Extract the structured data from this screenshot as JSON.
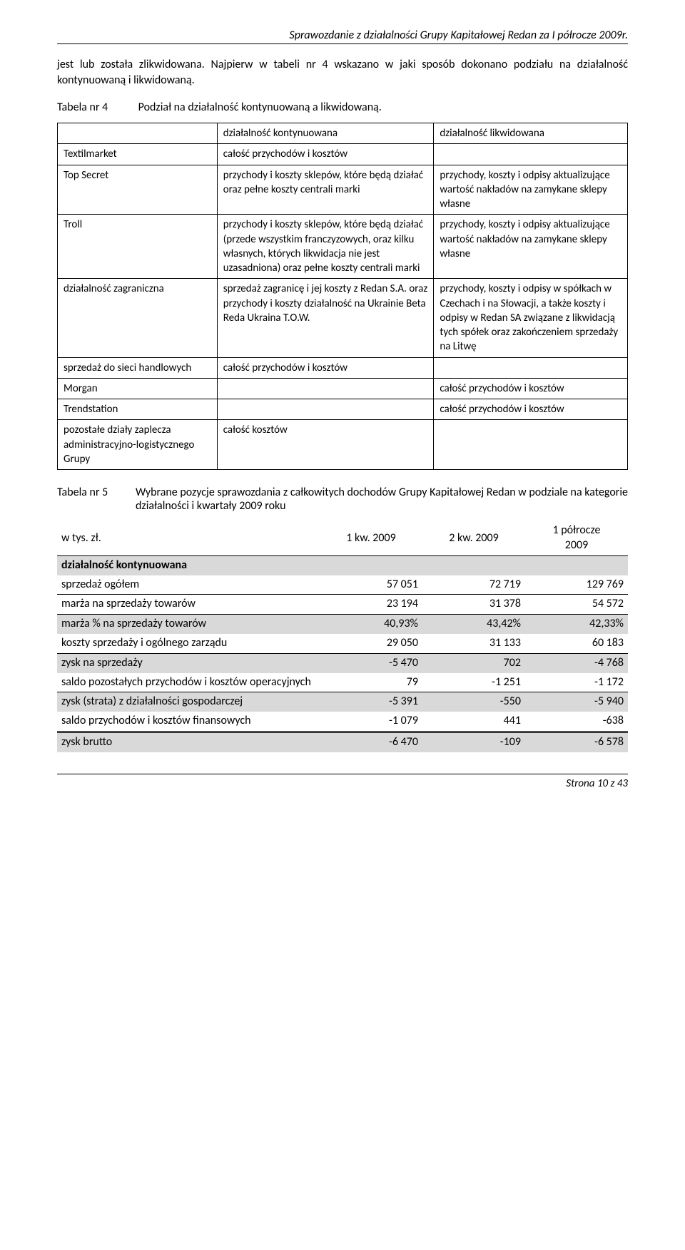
{
  "header": {
    "title": "Sprawozdanie z działalności Grupy Kapitałowej Redan za I półrocze 2009r."
  },
  "para1": "jest lub została zlikwidowana. Najpierw w tabeli nr 4 wskazano w jaki sposób dokonano podziału na działalność kontynuowaną i likwidowaną.",
  "tabela4": {
    "label": "Tabela nr 4",
    "caption": "Podział na działalność kontynuowaną a likwidowaną.",
    "head": {
      "c2": "działalność kontynuowana",
      "c3": "działalność likwidowana"
    },
    "rows": [
      {
        "c1": "Textilmarket",
        "c2": "całość przychodów i kosztów",
        "c3": ""
      },
      {
        "c1": "Top Secret",
        "c2": "przychody i koszty sklepów, które będą działać oraz pełne koszty centrali marki",
        "c3": "przychody, koszty i odpisy aktualizujące wartość nakładów na zamykane sklepy własne"
      },
      {
        "c1": "Troll",
        "c2": "przychody i koszty sklepów, które będą działać (przede wszystkim franczyzowych, oraz kilku własnych, których likwidacja nie jest uzasadniona) oraz pełne koszty centrali marki",
        "c3": "przychody, koszty i odpisy aktualizujące wartość nakładów na zamykane sklepy własne"
      },
      {
        "c1": "działalność zagraniczna",
        "c2": "sprzedaż zagranicę i jej koszty z Redan S.A. oraz przychody i koszty działalność na Ukrainie Beta Reda Ukraina T.O.W.",
        "c3": "przychody, koszty i odpisy w spółkach w Czechach i na Słowacji, a także koszty i odpisy w Redan SA związane z likwidacją tych spółek oraz zakończeniem sprzedaży na Litwę"
      },
      {
        "c1": "sprzedaż do sieci handlowych",
        "c2": "całość przychodów i kosztów",
        "c3": ""
      },
      {
        "c1": "Morgan",
        "c2": "",
        "c3": "całość przychodów i kosztów"
      },
      {
        "c1": "Trendstation",
        "c2": "",
        "c3": "całość przychodów i kosztów"
      },
      {
        "c1": "pozostałe działy zaplecza administracyjno-logistycznego Grupy",
        "c2": "całość kosztów",
        "c3": ""
      }
    ]
  },
  "tabela5": {
    "label": "Tabela nr 5",
    "caption": "Wybrane pozycje sprawozdania z całkowitych dochodów Grupy Kapitałowej Redan w podziale na kategorie działalności i kwartały 2009 roku",
    "columns": {
      "desc": "w tys. zł.",
      "q1": "1 kw. 2009",
      "q2": "2 kw. 2009",
      "h1": "1 półrocze\n2009"
    },
    "section": "działalność kontynuowana",
    "rows": [
      {
        "label": "sprzedaż ogółem",
        "q1": "57 051",
        "q2": "72 719",
        "h1": "129 769",
        "border": "bottom"
      },
      {
        "label": "marża na sprzedaży towarów",
        "q1": "23 194",
        "q2": "31 378",
        "h1": "54 572",
        "border": "bottom"
      },
      {
        "label": "marża % na sprzedaży towarów",
        "q1": "40,93%",
        "q2": "43,42%",
        "h1": "42,33%",
        "shade": true
      },
      {
        "label": "koszty sprzedaży i ogólnego zarządu",
        "q1": "29 050",
        "q2": "31 133",
        "h1": "60 183",
        "border": "bottom"
      },
      {
        "label": "zysk na sprzedaży",
        "q1": "-5 470",
        "q2": "702",
        "h1": "-4 768",
        "shade": true
      },
      {
        "label": "saldo pozostałych przychodów i kosztów operacyjnych",
        "q1": "79",
        "q2": "-1 251",
        "h1": "-1 172",
        "border": "bottom"
      },
      {
        "label": "zysk (strata) z działalności gospodarczej",
        "q1": "-5 391",
        "q2": "-550",
        "h1": "-5 940",
        "shade": true
      },
      {
        "label": "saldo przychodów i kosztów finansowych",
        "q1": "-1 079",
        "q2": "441",
        "h1": "-638",
        "border": "bottom"
      },
      {
        "label": "zysk brutto",
        "q1": "-6 470",
        "q2": "-109",
        "h1": "-6 578",
        "dbltop": true,
        "shade": true
      }
    ]
  },
  "footer": "Strona 10 z 43"
}
